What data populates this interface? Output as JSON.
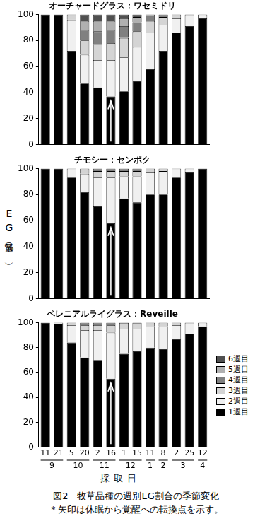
{
  "chart_data": [
    {
      "type": "bar",
      "title": "オーチャードグラス：ワセミドリ",
      "stacked": true,
      "grid": false,
      "tick_labels": "y",
      "categories": [
        "11",
        "21",
        "5",
        "20",
        "2",
        "16",
        "1",
        "15",
        "11",
        "8",
        "2",
        "25",
        "12"
      ],
      "months": [
        "9",
        "9",
        "10",
        "10",
        "11",
        "11",
        "12",
        "12",
        "1",
        "2",
        "3",
        "3",
        "4"
      ],
      "ylim": [
        0,
        100
      ],
      "yticks": [
        0,
        20,
        40,
        60,
        80,
        100
      ],
      "arrow_at": 5,
      "series": [
        {
          "name": "1週目",
          "color": "#000000",
          "values": [
            100,
            100,
            72,
            47,
            44,
            37,
            41,
            49,
            58,
            72,
            86,
            91,
            97
          ]
        },
        {
          "name": "2週目",
          "color": "#f0f0f0",
          "values": [
            0,
            0,
            24,
            22,
            21,
            28,
            26,
            26,
            28,
            20,
            11,
            8,
            3
          ]
        },
        {
          "name": "3週目",
          "color": "#d4d4d4",
          "values": [
            0,
            0,
            4,
            11,
            12,
            13,
            15,
            12,
            9,
            6,
            3,
            1,
            0
          ]
        },
        {
          "name": "4週目",
          "color": "#808080",
          "values": [
            0,
            0,
            0,
            8,
            10,
            10,
            9,
            7,
            4,
            2,
            0,
            0,
            0
          ]
        },
        {
          "name": "5週目",
          "color": "#b0b0b0",
          "values": [
            0,
            0,
            0,
            7,
            8,
            7,
            6,
            4,
            1,
            0,
            0,
            0,
            0
          ]
        },
        {
          "name": "6週目",
          "color": "#505050",
          "values": [
            0,
            0,
            0,
            5,
            5,
            5,
            3,
            2,
            0,
            0,
            0,
            0,
            0
          ]
        }
      ]
    },
    {
      "type": "bar",
      "title": "チモシー：センポク",
      "stacked": true,
      "grid": false,
      "tick_labels": "y",
      "categories": [
        "11",
        "21",
        "5",
        "20",
        "2",
        "16",
        "1",
        "15",
        "11",
        "8",
        "2",
        "25",
        "12"
      ],
      "months": [
        "9",
        "9",
        "10",
        "10",
        "11",
        "11",
        "12",
        "12",
        "1",
        "2",
        "3",
        "3",
        "4"
      ],
      "ylim": [
        0,
        100
      ],
      "yticks": [
        0,
        20,
        40,
        60,
        80,
        100
      ],
      "arrow_at": 5,
      "series": [
        {
          "name": "1週目",
          "color": "#000000",
          "values": [
            100,
            100,
            93,
            82,
            71,
            58,
            77,
            74,
            80,
            80,
            93,
            97,
            100
          ]
        },
        {
          "name": "2週目",
          "color": "#f0f0f0",
          "values": [
            0,
            0,
            7,
            14,
            22,
            35,
            17,
            20,
            17,
            18,
            7,
            3,
            0
          ]
        },
        {
          "name": "3週目",
          "color": "#d4d4d4",
          "values": [
            0,
            0,
            0,
            4,
            5,
            5,
            4,
            4,
            3,
            2,
            0,
            0,
            0
          ]
        },
        {
          "name": "4週目",
          "color": "#808080",
          "values": [
            0,
            0,
            0,
            0,
            2,
            2,
            2,
            2,
            0,
            0,
            0,
            0,
            0
          ]
        },
        {
          "name": "5週目",
          "color": "#b0b0b0",
          "values": [
            0,
            0,
            0,
            0,
            0,
            0,
            0,
            0,
            0,
            0,
            0,
            0,
            0
          ]
        },
        {
          "name": "6週目",
          "color": "#505050",
          "values": [
            0,
            0,
            0,
            0,
            0,
            0,
            0,
            0,
            0,
            0,
            0,
            0,
            0
          ]
        }
      ]
    },
    {
      "type": "bar",
      "title": "ペレニアルライグラス：Reveille",
      "stacked": true,
      "grid": false,
      "tick_labels": true,
      "legend": "right",
      "categories": [
        "11",
        "21",
        "5",
        "20",
        "2",
        "16",
        "1",
        "15",
        "11",
        "8",
        "2",
        "25",
        "12"
      ],
      "months": [
        "9",
        "9",
        "10",
        "10",
        "11",
        "11",
        "12",
        "12",
        "1",
        "2",
        "3",
        "3",
        "4"
      ],
      "ylim": [
        0,
        100
      ],
      "yticks": [
        0,
        20,
        40,
        60,
        80,
        100
      ],
      "arrow_at": 5,
      "series": [
        {
          "name": "1週目",
          "color": "#000000",
          "values": [
            100,
            99,
            84,
            72,
            70,
            55,
            75,
            77,
            80,
            79,
            87,
            91,
            97
          ]
        },
        {
          "name": "2週目",
          "color": "#f0f0f0",
          "values": [
            0,
            1,
            14,
            22,
            24,
            37,
            20,
            18,
            17,
            18,
            11,
            8,
            3
          ]
        },
        {
          "name": "3週目",
          "color": "#d4d4d4",
          "values": [
            0,
            0,
            2,
            4,
            4,
            6,
            4,
            4,
            3,
            3,
            2,
            1,
            0
          ]
        },
        {
          "name": "4週目",
          "color": "#808080",
          "values": [
            0,
            0,
            0,
            2,
            2,
            2,
            1,
            1,
            0,
            0,
            0,
            0,
            0
          ]
        },
        {
          "name": "5週目",
          "color": "#b0b0b0",
          "values": [
            0,
            0,
            0,
            0,
            0,
            0,
            0,
            0,
            0,
            0,
            0,
            0,
            0
          ]
        },
        {
          "name": "6週目",
          "color": "#505050",
          "values": [
            0,
            0,
            0,
            0,
            0,
            0,
            0,
            0,
            0,
            0,
            0,
            0,
            0
          ]
        }
      ]
    }
  ],
  "y_label": "EG量（%）",
  "x_label": "採取日",
  "caption": [
    "図2　牧草品種の週別EG割合の季節変化",
    "＊矢印は休眠から覚醒への転換点を示す。"
  ]
}
